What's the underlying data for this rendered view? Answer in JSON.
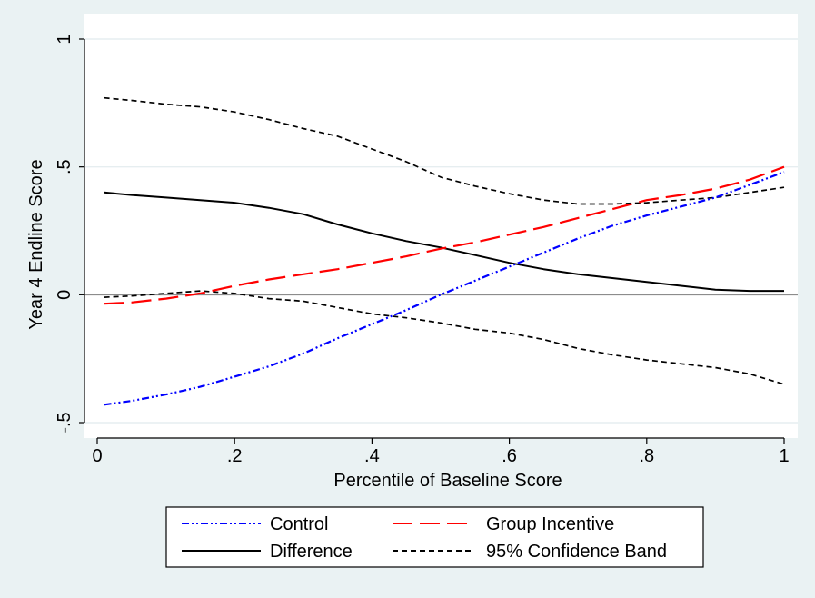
{
  "chart_data": {
    "type": "line",
    "title": "",
    "xlabel": "Percentile of Baseline Score",
    "ylabel": "Year 4 Endline Score",
    "xlim": [
      0,
      1
    ],
    "ylim": [
      -0.5,
      1
    ],
    "x_ticks": [
      0,
      0.2,
      0.4,
      0.6,
      0.8,
      1
    ],
    "x_tick_labels": [
      "0",
      ".2",
      ".4",
      ".6",
      ".8",
      "1"
    ],
    "y_ticks": [
      -0.5,
      0,
      0.5,
      1
    ],
    "y_tick_labels": [
      "-.5",
      "0",
      ".5",
      "1"
    ],
    "grid": true,
    "reference_line_y": 0,
    "legend_position": "bottom",
    "series": [
      {
        "name": "Control",
        "color": "#0000ff",
        "dash": "dash-dot-dot",
        "x": [
          0.01,
          0.05,
          0.1,
          0.15,
          0.2,
          0.25,
          0.3,
          0.35,
          0.4,
          0.45,
          0.5,
          0.55,
          0.6,
          0.65,
          0.7,
          0.75,
          0.8,
          0.85,
          0.9,
          0.95,
          1.0
        ],
        "y": [
          -0.43,
          -0.415,
          -0.39,
          -0.36,
          -0.32,
          -0.28,
          -0.23,
          -0.17,
          -0.115,
          -0.06,
          0.0,
          0.055,
          0.11,
          0.165,
          0.22,
          0.27,
          0.31,
          0.345,
          0.38,
          0.43,
          0.48
        ]
      },
      {
        "name": "Group Incentive",
        "color": "#ff0000",
        "dash": "long-dash",
        "x": [
          0.01,
          0.05,
          0.1,
          0.15,
          0.2,
          0.25,
          0.3,
          0.35,
          0.4,
          0.45,
          0.5,
          0.55,
          0.6,
          0.65,
          0.7,
          0.75,
          0.8,
          0.85,
          0.9,
          0.95,
          1.0
        ],
        "y": [
          -0.035,
          -0.03,
          -0.015,
          0.005,
          0.035,
          0.06,
          0.08,
          0.1,
          0.125,
          0.15,
          0.18,
          0.205,
          0.235,
          0.265,
          0.3,
          0.335,
          0.37,
          0.39,
          0.415,
          0.45,
          0.5
        ]
      },
      {
        "name": "Difference",
        "color": "#000000",
        "dash": "solid",
        "x": [
          0.01,
          0.05,
          0.1,
          0.15,
          0.2,
          0.25,
          0.3,
          0.35,
          0.4,
          0.45,
          0.5,
          0.55,
          0.6,
          0.65,
          0.7,
          0.75,
          0.8,
          0.85,
          0.9,
          0.95,
          1.0
        ],
        "y": [
          0.4,
          0.39,
          0.38,
          0.37,
          0.36,
          0.34,
          0.315,
          0.275,
          0.24,
          0.21,
          0.185,
          0.155,
          0.125,
          0.1,
          0.08,
          0.065,
          0.05,
          0.035,
          0.02,
          0.015,
          0.015
        ]
      },
      {
        "name": "95% Confidence Band",
        "color": "#000000",
        "dash": "short-dash",
        "x": [
          0.01,
          0.05,
          0.1,
          0.15,
          0.2,
          0.25,
          0.3,
          0.35,
          0.4,
          0.45,
          0.5,
          0.55,
          0.6,
          0.65,
          0.7,
          0.75,
          0.8,
          0.85,
          0.9,
          0.95,
          1.0
        ],
        "y": [
          0.77,
          0.76,
          0.745,
          0.735,
          0.715,
          0.685,
          0.65,
          0.62,
          0.57,
          0.52,
          0.46,
          0.425,
          0.395,
          0.37,
          0.355,
          0.355,
          0.36,
          0.37,
          0.38,
          0.4,
          0.42
        ]
      },
      {
        "name": "",
        "color": "#000000",
        "dash": "short-dash",
        "x": [
          0.01,
          0.05,
          0.1,
          0.15,
          0.2,
          0.25,
          0.3,
          0.35,
          0.4,
          0.45,
          0.5,
          0.55,
          0.6,
          0.65,
          0.7,
          0.75,
          0.8,
          0.85,
          0.9,
          0.95,
          1.0
        ],
        "y": [
          -0.01,
          -0.005,
          0.005,
          0.015,
          0.005,
          -0.015,
          -0.025,
          -0.05,
          -0.075,
          -0.09,
          -0.11,
          -0.135,
          -0.15,
          -0.175,
          -0.21,
          -0.235,
          -0.255,
          -0.27,
          -0.285,
          -0.31,
          -0.35
        ]
      }
    ],
    "legend": [
      {
        "label": "Control",
        "series": 0
      },
      {
        "label": "Group Incentive",
        "series": 1
      },
      {
        "label": "Difference",
        "series": 2
      },
      {
        "label": "95% Confidence Band",
        "series": 3
      }
    ]
  }
}
